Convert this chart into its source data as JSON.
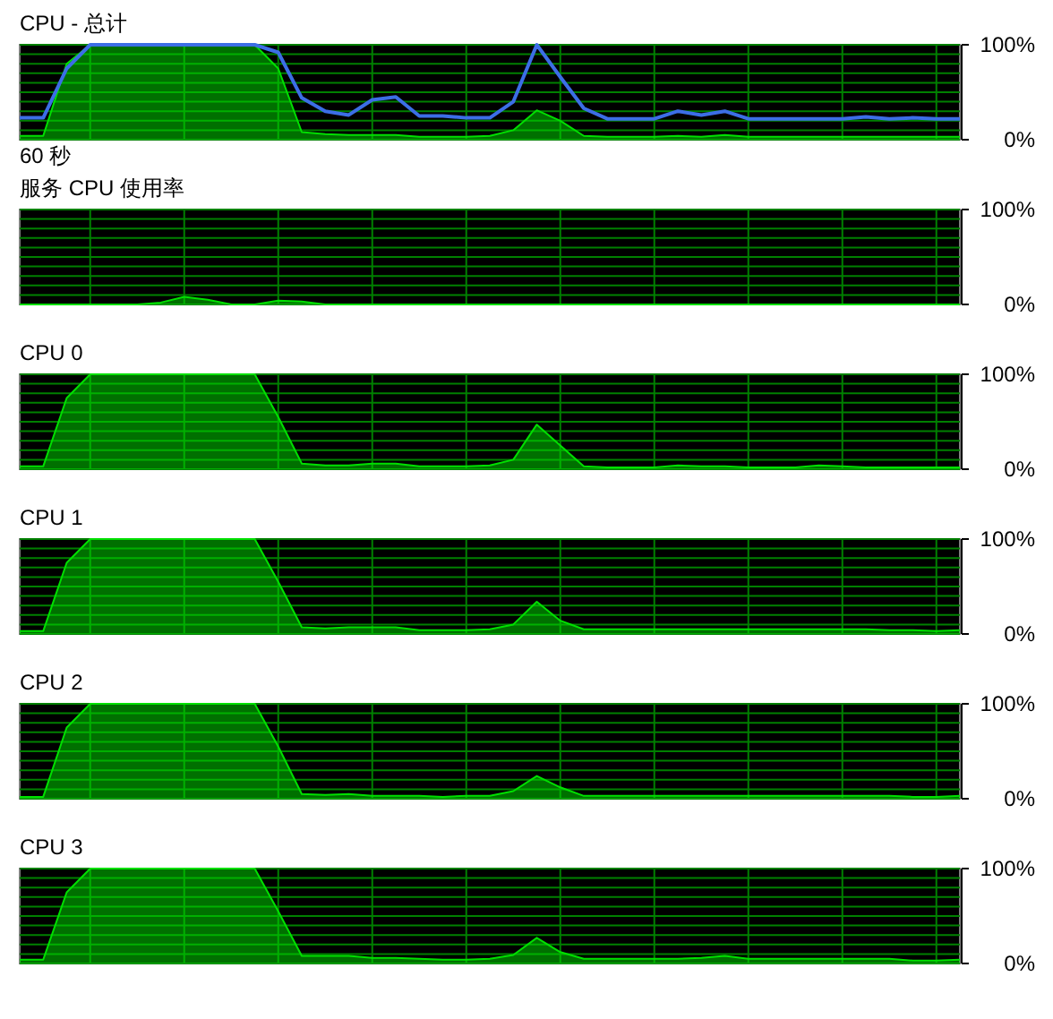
{
  "chart_data": [
    {
      "type": "area",
      "title": "CPU - 总计",
      "xlabel": "60 秒",
      "categories": [
        null,
        null,
        null,
        null,
        null,
        null,
        null,
        null,
        null,
        null,
        null,
        null,
        null,
        null,
        null,
        null,
        null,
        null,
        null,
        null,
        null,
        null,
        null,
        null,
        null,
        null,
        null,
        null,
        null,
        null,
        null,
        null,
        null,
        null,
        null,
        null,
        null,
        null,
        null,
        null,
        null
      ],
      "ylim": [
        0,
        100
      ],
      "yticks": [
        {
          "value": 0,
          "label": "0%"
        },
        {
          "value": 10,
          "label": null
        },
        {
          "value": 20,
          "label": null
        },
        {
          "value": 30,
          "label": null
        },
        {
          "value": 40,
          "label": null
        },
        {
          "value": 50,
          "label": null
        },
        {
          "value": 60,
          "label": null
        },
        {
          "value": 70,
          "label": null
        },
        {
          "value": 80,
          "label": null
        },
        {
          "value": 90,
          "label": null
        },
        {
          "value": 100,
          "label": "100%"
        }
      ],
      "grid": true,
      "series": [
        {
          "type": "area",
          "color": "#00e000",
          "values": [
            4,
            4,
            80,
            100,
            100,
            100,
            100,
            100,
            100,
            100,
            100,
            75,
            8,
            6,
            5,
            5,
            5,
            3,
            3,
            3,
            4,
            10,
            31,
            20,
            4,
            3,
            3,
            3,
            4,
            3,
            5,
            3,
            3,
            3,
            3,
            3,
            3,
            3,
            3,
            3,
            3
          ]
        },
        {
          "type": "line",
          "color": "#3c6ee6",
          "values": [
            23,
            23,
            75,
            100,
            100,
            100,
            100,
            100,
            100,
            100,
            100,
            92,
            44,
            30,
            26,
            42,
            45,
            25,
            25,
            23,
            23,
            40,
            100,
            66,
            33,
            22,
            22,
            22,
            30,
            26,
            30,
            22,
            22,
            22,
            22,
            22,
            24,
            22,
            23,
            22,
            22
          ]
        }
      ]
    },
    {
      "type": "area",
      "title": "服务 CPU 使用率",
      "categories": [
        null,
        null,
        null,
        null,
        null,
        null,
        null,
        null,
        null,
        null,
        null,
        null,
        null,
        null,
        null,
        null,
        null,
        null,
        null,
        null,
        null,
        null,
        null,
        null,
        null,
        null,
        null,
        null,
        null,
        null,
        null,
        null,
        null,
        null,
        null,
        null,
        null,
        null,
        null,
        null,
        null
      ],
      "ylim": [
        0,
        100
      ],
      "yticks": [
        {
          "value": 0,
          "label": "0%"
        },
        {
          "value": 10,
          "label": null
        },
        {
          "value": 20,
          "label": null
        },
        {
          "value": 30,
          "label": null
        },
        {
          "value": 40,
          "label": null
        },
        {
          "value": 50,
          "label": null
        },
        {
          "value": 60,
          "label": null
        },
        {
          "value": 70,
          "label": null
        },
        {
          "value": 80,
          "label": null
        },
        {
          "value": 90,
          "label": null
        },
        {
          "value": 100,
          "label": "100%"
        }
      ],
      "grid": true,
      "series": [
        {
          "type": "area",
          "color": "#00e000",
          "values": [
            0,
            0,
            0,
            0,
            0,
            0,
            2,
            8,
            5,
            0,
            0,
            4,
            3,
            0,
            0,
            0,
            0,
            0,
            0,
            0,
            0,
            0,
            0,
            0,
            0,
            0,
            0,
            0,
            0,
            0,
            0,
            0,
            0,
            0,
            0,
            0,
            0,
            0,
            0,
            0,
            0
          ]
        }
      ]
    },
    {
      "type": "area",
      "title": "CPU 0",
      "categories": [
        null,
        null,
        null,
        null,
        null,
        null,
        null,
        null,
        null,
        null,
        null,
        null,
        null,
        null,
        null,
        null,
        null,
        null,
        null,
        null,
        null,
        null,
        null,
        null,
        null,
        null,
        null,
        null,
        null,
        null,
        null,
        null,
        null,
        null,
        null,
        null,
        null,
        null,
        null,
        null,
        null
      ],
      "ylim": [
        0,
        100
      ],
      "yticks": [
        {
          "value": 0,
          "label": "0%"
        },
        {
          "value": 10,
          "label": null
        },
        {
          "value": 20,
          "label": null
        },
        {
          "value": 30,
          "label": null
        },
        {
          "value": 40,
          "label": null
        },
        {
          "value": 50,
          "label": null
        },
        {
          "value": 60,
          "label": null
        },
        {
          "value": 70,
          "label": null
        },
        {
          "value": 80,
          "label": null
        },
        {
          "value": 90,
          "label": null
        },
        {
          "value": 100,
          "label": "100%"
        }
      ],
      "grid": true,
      "series": [
        {
          "type": "area",
          "color": "#00e000",
          "values": [
            3,
            3,
            75,
            100,
            100,
            100,
            100,
            100,
            100,
            100,
            100,
            55,
            6,
            4,
            4,
            6,
            6,
            3,
            3,
            3,
            4,
            10,
            47,
            25,
            3,
            2,
            2,
            2,
            4,
            3,
            3,
            2,
            2,
            2,
            4,
            3,
            2,
            2,
            2,
            2,
            2
          ]
        }
      ]
    },
    {
      "type": "area",
      "title": "CPU 1",
      "categories": [
        null,
        null,
        null,
        null,
        null,
        null,
        null,
        null,
        null,
        null,
        null,
        null,
        null,
        null,
        null,
        null,
        null,
        null,
        null,
        null,
        null,
        null,
        null,
        null,
        null,
        null,
        null,
        null,
        null,
        null,
        null,
        null,
        null,
        null,
        null,
        null,
        null,
        null,
        null,
        null,
        null
      ],
      "ylim": [
        0,
        100
      ],
      "yticks": [
        {
          "value": 0,
          "label": "0%"
        },
        {
          "value": 10,
          "label": null
        },
        {
          "value": 20,
          "label": null
        },
        {
          "value": 30,
          "label": null
        },
        {
          "value": 40,
          "label": null
        },
        {
          "value": 50,
          "label": null
        },
        {
          "value": 60,
          "label": null
        },
        {
          "value": 70,
          "label": null
        },
        {
          "value": 80,
          "label": null
        },
        {
          "value": 90,
          "label": null
        },
        {
          "value": 100,
          "label": "100%"
        }
      ],
      "grid": true,
      "series": [
        {
          "type": "area",
          "color": "#00e000",
          "values": [
            3,
            3,
            75,
            100,
            100,
            100,
            100,
            100,
            100,
            100,
            100,
            55,
            7,
            6,
            7,
            7,
            7,
            4,
            4,
            4,
            5,
            10,
            34,
            14,
            5,
            5,
            5,
            5,
            5,
            5,
            5,
            5,
            5,
            5,
            5,
            5,
            5,
            4,
            4,
            3,
            4
          ]
        }
      ]
    },
    {
      "type": "area",
      "title": "CPU 2",
      "categories": [
        null,
        null,
        null,
        null,
        null,
        null,
        null,
        null,
        null,
        null,
        null,
        null,
        null,
        null,
        null,
        null,
        null,
        null,
        null,
        null,
        null,
        null,
        null,
        null,
        null,
        null,
        null,
        null,
        null,
        null,
        null,
        null,
        null,
        null,
        null,
        null,
        null,
        null,
        null,
        null,
        null
      ],
      "ylim": [
        0,
        100
      ],
      "yticks": [
        {
          "value": 0,
          "label": "0%"
        },
        {
          "value": 10,
          "label": null
        },
        {
          "value": 20,
          "label": null
        },
        {
          "value": 30,
          "label": null
        },
        {
          "value": 40,
          "label": null
        },
        {
          "value": 50,
          "label": null
        },
        {
          "value": 60,
          "label": null
        },
        {
          "value": 70,
          "label": null
        },
        {
          "value": 80,
          "label": null
        },
        {
          "value": 90,
          "label": null
        },
        {
          "value": 100,
          "label": "100%"
        }
      ],
      "grid": true,
      "series": [
        {
          "type": "area",
          "color": "#00e000",
          "values": [
            2,
            2,
            75,
            100,
            100,
            100,
            100,
            100,
            100,
            100,
            100,
            55,
            5,
            4,
            5,
            3,
            3,
            3,
            2,
            3,
            3,
            8,
            24,
            12,
            3,
            3,
            3,
            3,
            3,
            3,
            3,
            3,
            3,
            3,
            3,
            3,
            3,
            3,
            2,
            2,
            3
          ]
        }
      ]
    },
    {
      "type": "area",
      "title": "CPU 3",
      "categories": [
        null,
        null,
        null,
        null,
        null,
        null,
        null,
        null,
        null,
        null,
        null,
        null,
        null,
        null,
        null,
        null,
        null,
        null,
        null,
        null,
        null,
        null,
        null,
        null,
        null,
        null,
        null,
        null,
        null,
        null,
        null,
        null,
        null,
        null,
        null,
        null,
        null,
        null,
        null,
        null,
        null
      ],
      "ylim": [
        0,
        100
      ],
      "yticks": [
        {
          "value": 0,
          "label": "0%"
        },
        {
          "value": 10,
          "label": null
        },
        {
          "value": 20,
          "label": null
        },
        {
          "value": 30,
          "label": null
        },
        {
          "value": 40,
          "label": null
        },
        {
          "value": 50,
          "label": null
        },
        {
          "value": 60,
          "label": null
        },
        {
          "value": 70,
          "label": null
        },
        {
          "value": 80,
          "label": null
        },
        {
          "value": 90,
          "label": null
        },
        {
          "value": 100,
          "label": "100%"
        }
      ],
      "grid": true,
      "series": [
        {
          "type": "area",
          "color": "#00e000",
          "values": [
            4,
            4,
            75,
            100,
            100,
            100,
            100,
            100,
            100,
            100,
            100,
            55,
            8,
            8,
            8,
            6,
            6,
            5,
            4,
            4,
            5,
            9,
            27,
            12,
            5,
            5,
            5,
            5,
            5,
            6,
            8,
            5,
            5,
            5,
            5,
            5,
            5,
            5,
            3,
            3,
            4
          ]
        }
      ]
    }
  ]
}
